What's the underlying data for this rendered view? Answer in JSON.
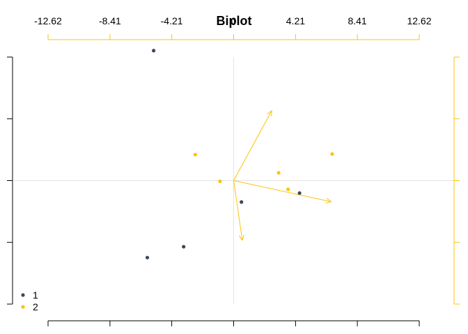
{
  "chart_data": {
    "type": "scatter",
    "title": "Biplot",
    "xlabel": "",
    "ylabel": "",
    "grid": false,
    "legend_position": "bottom-left",
    "top_axis": {
      "ticks": [
        -12.62,
        -8.41,
        -4.21,
        0,
        4.21,
        8.41,
        12.62
      ],
      "tick_labels": [
        "-12.62",
        "-8.41",
        "-4.21",
        "0",
        "4.21",
        "8.41",
        "12.62"
      ]
    },
    "bottom_axis_ticks": [
      -12.62,
      -8.41,
      -4.21,
      0,
      4.21,
      8.41,
      12.62
    ],
    "left_axis_ticks": [
      8.42,
      4.21,
      0,
      -4.21,
      -8.42
    ],
    "right_axis_ticks": [
      8.42,
      4.21,
      0,
      -4.21,
      -8.42
    ],
    "xlim": [
      -12.62,
      12.62
    ],
    "ylim": [
      -8.42,
      8.42
    ],
    "series": [
      {
        "name": "1",
        "color": "#3b4a5a",
        "points": [
          {
            "x": -5.44,
            "y": 8.86
          },
          {
            "x": 0.53,
            "y": -1.46
          },
          {
            "x": 4.48,
            "y": -0.85
          },
          {
            "x": -3.4,
            "y": -4.51
          },
          {
            "x": -5.87,
            "y": -5.25
          }
        ]
      },
      {
        "name": "2",
        "color": "#ffc20a",
        "points": [
          {
            "x": -2.61,
            "y": 1.77
          },
          {
            "x": -0.93,
            "y": -0.05
          },
          {
            "x": 3.06,
            "y": 0.53
          },
          {
            "x": 3.7,
            "y": -0.6
          },
          {
            "x": 6.7,
            "y": 1.81
          }
        ]
      }
    ],
    "loadings": {
      "color": "#ffc20a",
      "vectors": [
        {
          "x": 2.59,
          "y": 4.76
        },
        {
          "x": 6.63,
          "y": -1.44
        },
        {
          "x": 0.59,
          "y": -4.07
        }
      ]
    },
    "reference_lines": {
      "x": 0,
      "y": 0,
      "color": "#e3e3e3"
    }
  }
}
